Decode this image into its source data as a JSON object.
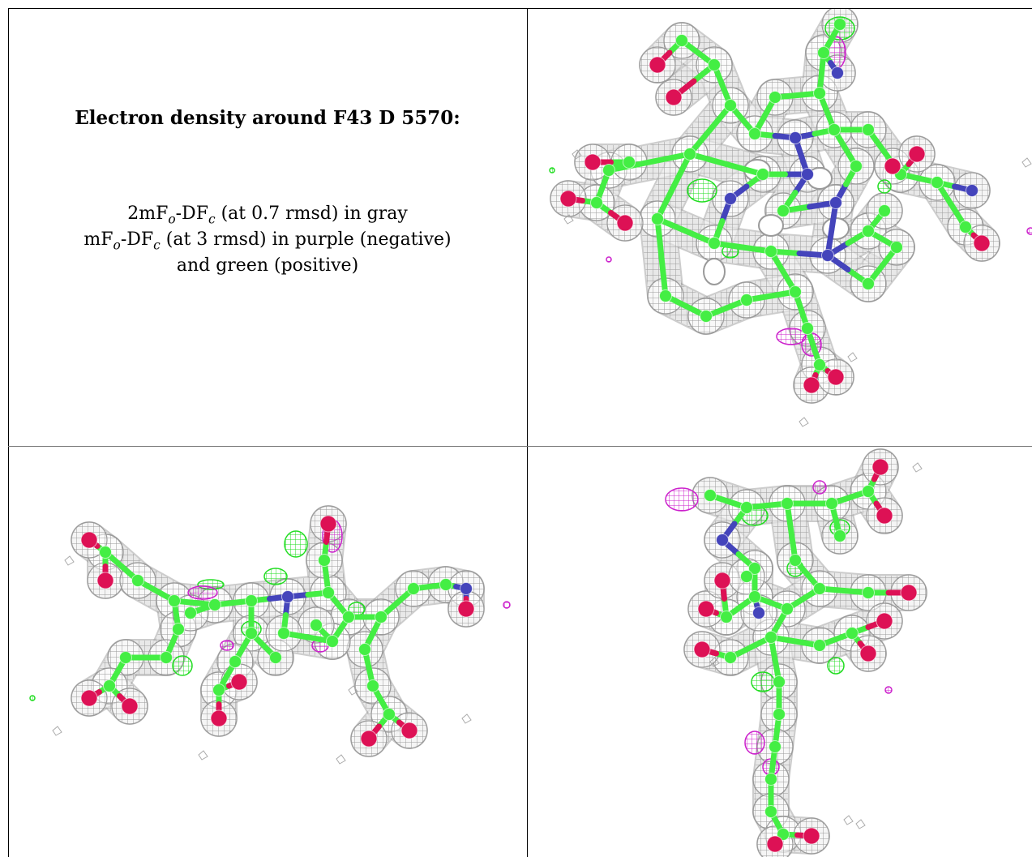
{
  "caption": {
    "title": "Electron density around F43 D 5570:",
    "line1": {
      "pre": "2mF",
      "s1": "o",
      "mid": "-DF",
      "s2": "c",
      "post": " (at 0.7 rmsd) in gray"
    },
    "line2": {
      "pre": "mF",
      "s1": "o",
      "mid": "-DF",
      "s2": "c",
      "post": " (at 3 rmsd) in purple (negative)"
    },
    "line3": "and green (positive)"
  },
  "colors": {
    "mesh_2fofc": "#9a9a9a",
    "mesh_fofc_negative": "#cc22cc",
    "mesh_fofc_positive": "#22dd22",
    "carbon": "#44ee44",
    "oxygen": "#dd1155",
    "nitrogen": "#4444bb"
  }
}
